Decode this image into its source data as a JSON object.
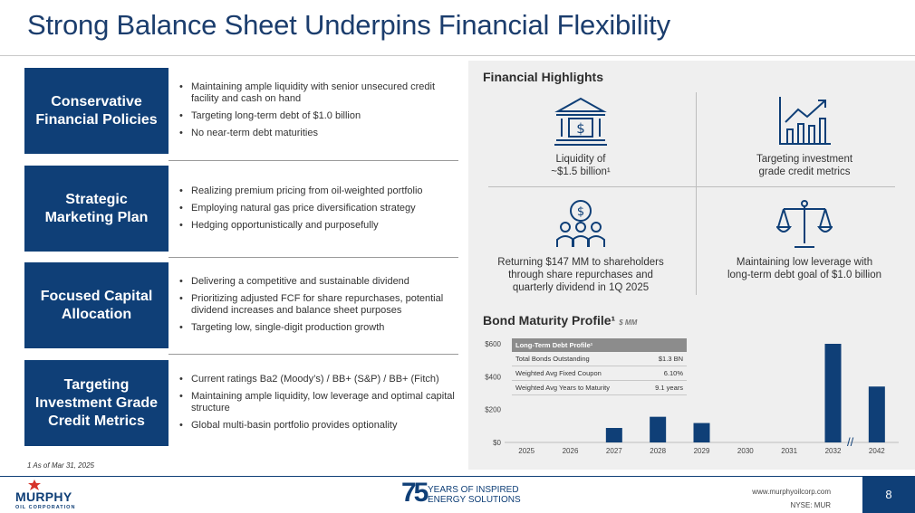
{
  "title": "Strong Balance Sheet Underpins Financial Flexibility",
  "sections": [
    {
      "label": "Conservative Financial Policies",
      "bullets": [
        "Maintaining ample liquidity with senior unsecured credit facility and cash on hand",
        "Targeting long-term debt of $1.0 billion",
        "No near-term debt maturities"
      ]
    },
    {
      "label": "Strategic Marketing Plan",
      "bullets": [
        "Realizing premium pricing from oil-weighted portfolio",
        "Employing natural gas price diversification strategy",
        "Hedging opportunistically and purposefully"
      ]
    },
    {
      "label": "Focused Capital Allocation",
      "bullets": [
        "Delivering a competitive and sustainable dividend",
        "Prioritizing adjusted FCF for share repurchases, potential dividend increases and balance sheet purposes",
        "Targeting low, single-digit production growth"
      ]
    },
    {
      "label": "Targeting Investment Grade Credit Metrics",
      "bullets": [
        "Current ratings Ba2 (Moody’s) / BB+ (S&P) / BB+ (Fitch)",
        "Maintaining ample liquidity, low leverage and optimal capital structure",
        "Global multi-basin portfolio provides optionality"
      ]
    }
  ],
  "footnote": "1 As of Mar 31, 2025",
  "highlights": {
    "title": "Financial Highlights",
    "items": [
      {
        "icon": "bank-icon",
        "line1": "Liquidity of",
        "line2": "~$1.5 billion¹"
      },
      {
        "icon": "growth-chart-icon",
        "line1": "Targeting investment",
        "line2": "grade credit metrics"
      },
      {
        "icon": "shareholders-icon",
        "line1": "Returning $147 MM to shareholders",
        "line2": "through share repurchases and",
        "line3": "quarterly dividend in 1Q 2025"
      },
      {
        "icon": "scales-icon",
        "line1": "Maintaining low leverage with",
        "line2": "long-term debt goal of $1.0 billion"
      }
    ]
  },
  "bond": {
    "title": "Bond Maturity Profile¹",
    "unit": "$ MM",
    "table": {
      "header": "Long-Term Debt Profile¹",
      "rows": [
        {
          "label": "Total Bonds Outstanding",
          "value": "$1.3 BN"
        },
        {
          "label": "Weighted Avg Fixed Coupon",
          "value": "6.10%"
        },
        {
          "label": "Weighted Avg Years to Maturity",
          "value": "9.1 years"
        }
      ]
    }
  },
  "chart_data": {
    "type": "bar",
    "categories": [
      "2025",
      "2026",
      "2027",
      "2028",
      "2029",
      "2030",
      "2031",
      "2032",
      "2042"
    ],
    "values": [
      0,
      0,
      88,
      156,
      118,
      0,
      0,
      600,
      340
    ],
    "ylim": [
      0,
      600
    ],
    "yticks": [
      "$0",
      "$200",
      "$400",
      "$600"
    ],
    "ytick_values": [
      0,
      200,
      400,
      600
    ],
    "axis_break": "//",
    "bar_color": "#0f3f77"
  },
  "footer": {
    "logo_name": "MURPHY",
    "logo_sub": "OIL CORPORATION",
    "anniv_number": "75",
    "anniv_line1": "YEARS OF INSPIRED",
    "anniv_line2": "ENERGY SOLUTIONS",
    "website": "www.murphyoilcorp.com",
    "ticker": "NYSE: MUR",
    "page": "8"
  }
}
